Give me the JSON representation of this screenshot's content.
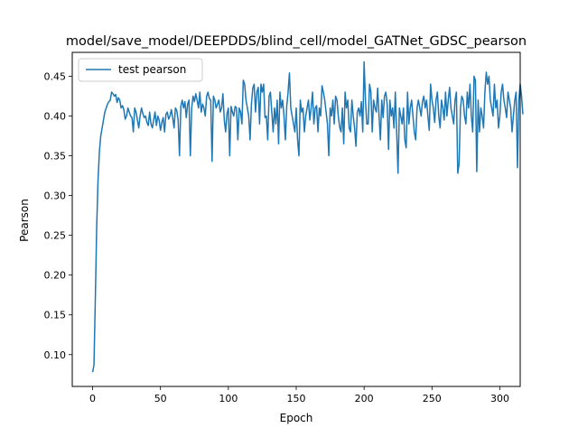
{
  "chart_data": {
    "type": "line",
    "title": "model/save_model/DEEPDDS/blind_cell/model_GATNet_GDSC_pearson",
    "xlabel": "Epoch",
    "ylabel": "Pearson",
    "xlim": [
      -15,
      315
    ],
    "ylim": [
      0.06,
      0.48
    ],
    "xticks": [
      0,
      50,
      100,
      150,
      200,
      250,
      300
    ],
    "xtick_labels": [
      "0",
      "50",
      "100",
      "150",
      "200",
      "250",
      "300"
    ],
    "yticks": [
      0.1,
      0.15,
      0.2,
      0.25,
      0.3,
      0.35,
      0.4,
      0.45
    ],
    "ytick_labels": [
      "0.10",
      "0.15",
      "0.20",
      "0.25",
      "0.30",
      "0.35",
      "0.40",
      "0.45"
    ],
    "grid": false,
    "legend_position": "upper-left",
    "series": [
      {
        "name": "test pearson",
        "color": "#1f77b4",
        "x_start": 0,
        "x_step": 1,
        "values": [
          0.078,
          0.087,
          0.17,
          0.26,
          0.32,
          0.355,
          0.375,
          0.385,
          0.395,
          0.405,
          0.41,
          0.415,
          0.418,
          0.42,
          0.43,
          0.428,
          0.425,
          0.427,
          0.417,
          0.423,
          0.42,
          0.41,
          0.413,
          0.408,
          0.396,
          0.4,
          0.41,
          0.405,
          0.4,
          0.398,
          0.38,
          0.41,
          0.405,
          0.395,
          0.385,
          0.4,
          0.41,
          0.403,
          0.398,
          0.4,
          0.392,
          0.388,
          0.405,
          0.39,
          0.385,
          0.395,
          0.405,
          0.388,
          0.4,
          0.395,
          0.382,
          0.392,
          0.398,
          0.38,
          0.402,
          0.405,
          0.396,
          0.4,
          0.408,
          0.398,
          0.385,
          0.41,
          0.407,
          0.395,
          0.35,
          0.412,
          0.42,
          0.41,
          0.418,
          0.398,
          0.415,
          0.42,
          0.35,
          0.41,
          0.425,
          0.418,
          0.428,
          0.42,
          0.41,
          0.43,
          0.405,
          0.415,
          0.41,
          0.4,
          0.425,
          0.43,
          0.422,
          0.42,
          0.343,
          0.425,
          0.42,
          0.41,
          0.415,
          0.42,
          0.405,
          0.41,
          0.428,
          0.395,
          0.38,
          0.403,
          0.41,
          0.35,
          0.412,
          0.405,
          0.4,
          0.412,
          0.41,
          0.37,
          0.41,
          0.405,
          0.39,
          0.445,
          0.44,
          0.42,
          0.41,
          0.4,
          0.37,
          0.415,
          0.435,
          0.44,
          0.405,
          0.43,
          0.436,
          0.39,
          0.44,
          0.43,
          0.44,
          0.398,
          0.4,
          0.37,
          0.425,
          0.43,
          0.405,
          0.38,
          0.41,
          0.39,
          0.42,
          0.365,
          0.43,
          0.41,
          0.42,
          0.4,
          0.37,
          0.412,
          0.43,
          0.454,
          0.41,
          0.4,
          0.39,
          0.38,
          0.41,
          0.37,
          0.35,
          0.42,
          0.405,
          0.41,
          0.38,
          0.4,
          0.41,
          0.42,
          0.395,
          0.41,
          0.43,
          0.39,
          0.41,
          0.413,
          0.38,
          0.41,
          0.4,
          0.438,
          0.43,
          0.42,
          0.405,
          0.39,
          0.35,
          0.41,
          0.4,
          0.42,
          0.39,
          0.425,
          0.42,
          0.4,
          0.386,
          0.38,
          0.41,
          0.365,
          0.43,
          0.41,
          0.42,
          0.385,
          0.38,
          0.42,
          0.4,
          0.385,
          0.362,
          0.405,
          0.41,
          0.4,
          0.418,
          0.38,
          0.468,
          0.42,
          0.39,
          0.39,
          0.44,
          0.43,
          0.38,
          0.42,
          0.41,
          0.405,
          0.435,
          0.4,
          0.37,
          0.42,
          0.398,
          0.425,
          0.43,
          0.415,
          0.358,
          0.42,
          0.4,
          0.41,
          0.385,
          0.43,
          0.38,
          0.328,
          0.41,
          0.4,
          0.39,
          0.41,
          0.37,
          0.36,
          0.43,
          0.39,
          0.41,
          0.42,
          0.4,
          0.38,
          0.37,
          0.41,
          0.42,
          0.41,
          0.4,
          0.418,
          0.425,
          0.41,
          0.42,
          0.4,
          0.382,
          0.44,
          0.42,
          0.41,
          0.392,
          0.42,
          0.43,
          0.4,
          0.385,
          0.42,
          0.41,
          0.395,
          0.43,
          0.4,
          0.42,
          0.436,
          0.41,
          0.4,
          0.39,
          0.42,
          0.43,
          0.328,
          0.34,
          0.41,
          0.425,
          0.42,
          0.4,
          0.39,
          0.43,
          0.41,
          0.44,
          0.4,
          0.38,
          0.45,
          0.445,
          0.33,
          0.42,
          0.38,
          0.41,
          0.4,
          0.385,
          0.43,
          0.455,
          0.44,
          0.45,
          0.42,
          0.41,
          0.4,
          0.44,
          0.41,
          0.42,
          0.385,
          0.4,
          0.43,
          0.44,
          0.42,
          0.41,
          0.398,
          0.43,
          0.42,
          0.41,
          0.38,
          0.4,
          0.42,
          0.43,
          0.335,
          0.42,
          0.44,
          0.425,
          0.402
        ]
      }
    ]
  }
}
